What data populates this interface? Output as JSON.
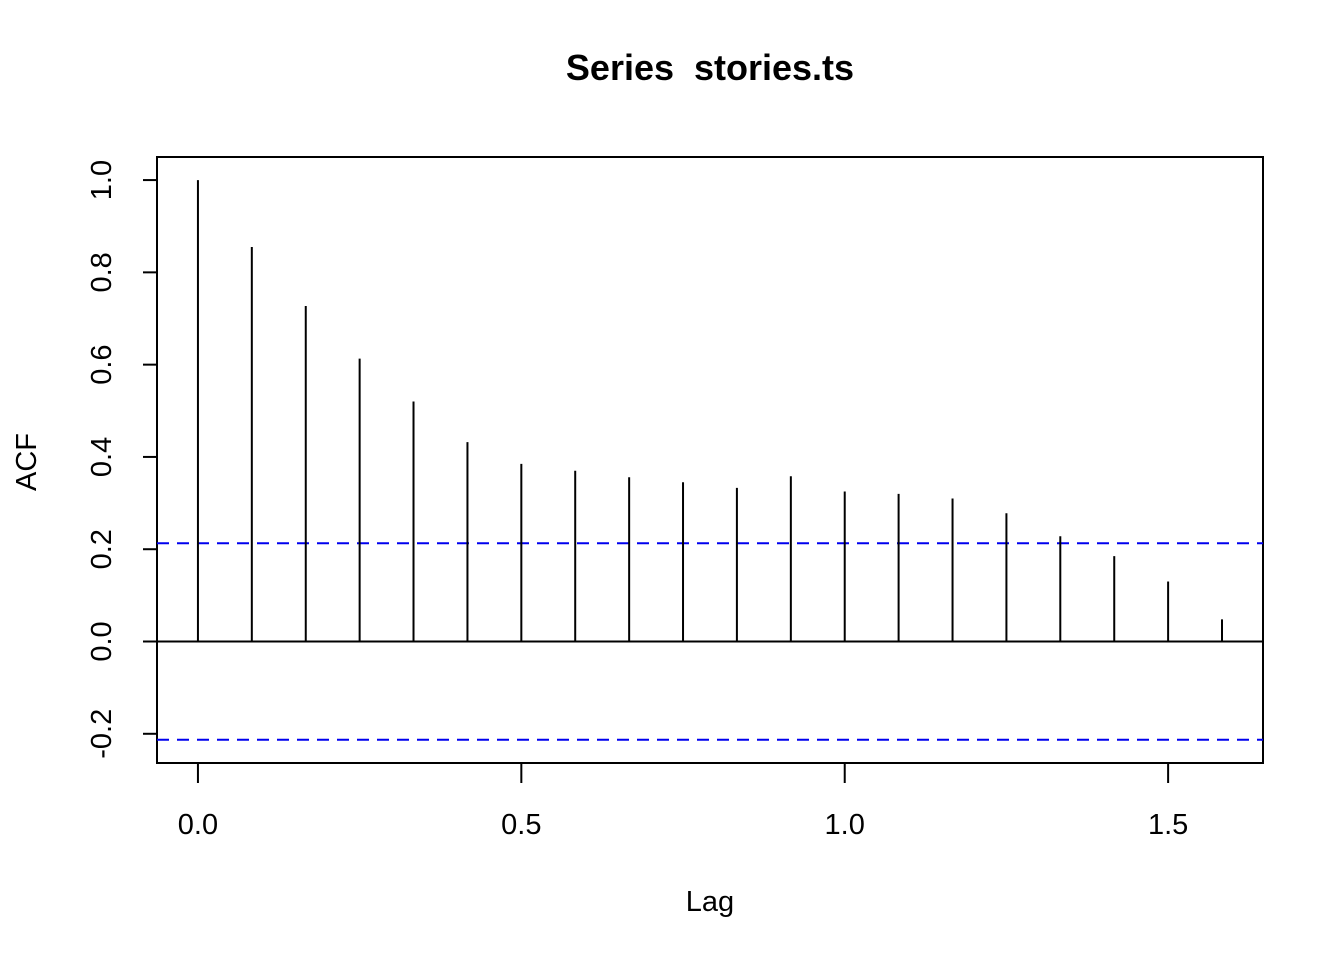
{
  "chart_data": {
    "type": "bar",
    "title": "Series  stories.ts",
    "xlabel": "Lag",
    "ylabel": "ACF",
    "xlim": [
      -0.0633,
      1.6467
    ],
    "ylim": [
      -0.2633,
      1.05
    ],
    "x_ticks": [
      0.0,
      0.5,
      1.0,
      1.5
    ],
    "x_tick_labels": [
      "0.0",
      "0.5",
      "1.0",
      "1.5"
    ],
    "y_ticks": [
      -0.2,
      0.0,
      0.2,
      0.4,
      0.6,
      0.8,
      1.0
    ],
    "y_tick_labels": [
      "-0.2",
      "0.0",
      "0.2",
      "0.4",
      "0.6",
      "0.8",
      "1.0"
    ],
    "lags": [
      0.0,
      0.0833,
      0.1667,
      0.25,
      0.3333,
      0.4167,
      0.5,
      0.5833,
      0.6667,
      0.75,
      0.8333,
      0.9167,
      1.0,
      1.0833,
      1.1667,
      1.25,
      1.3333,
      1.4167,
      1.5,
      1.5833
    ],
    "acf": [
      1.0,
      0.855,
      0.727,
      0.613,
      0.52,
      0.432,
      0.385,
      0.37,
      0.356,
      0.345,
      0.333,
      0.358,
      0.325,
      0.32,
      0.31,
      0.278,
      0.228,
      0.185,
      0.13,
      0.048
    ],
    "conf_limit": 0.213,
    "grid": false,
    "colors": {
      "bars": "#000000",
      "confidence_lines": "#0000ee",
      "zero_line": "#000000",
      "frame": "#000000"
    }
  }
}
